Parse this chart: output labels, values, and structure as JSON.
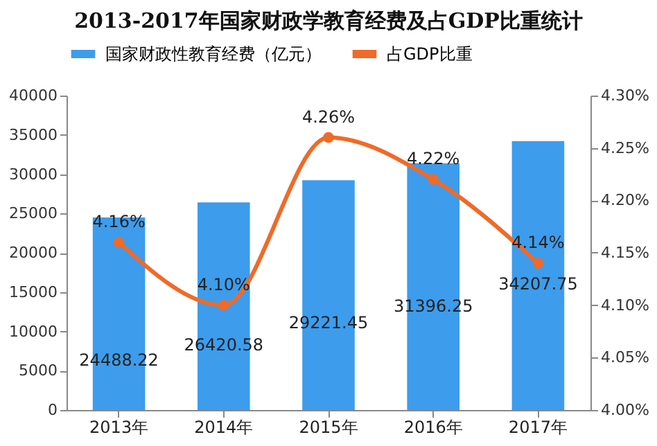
{
  "chart_data": {
    "type": "bar",
    "title": "2013-2017年国家财政学教育经费及占GDP比重统计",
    "categories": [
      "2013年",
      "2014年",
      "2015年",
      "2016年",
      "2017年"
    ],
    "series": [
      {
        "name": "国家财政性教育经费（亿元）",
        "type": "bar",
        "color": "#3d9cec",
        "values": [
          24488.22,
          26420.58,
          29221.45,
          31396.25,
          34207.75
        ],
        "value_labels": [
          "24488.22",
          "26420.58",
          "29221.45",
          "31396.25",
          "34207.75"
        ]
      },
      {
        "name": "占GDP比重",
        "type": "line",
        "axis": "y2",
        "color": "#f06a28",
        "values": [
          4.16,
          4.1,
          4.26,
          4.22,
          4.14
        ],
        "value_labels": [
          "4.16%",
          "4.10%",
          "4.26%",
          "4.22%",
          "4.14%"
        ]
      }
    ],
    "ylim": [
      0,
      40000
    ],
    "yticks": [
      0,
      5000,
      10000,
      15000,
      20000,
      25000,
      30000,
      35000,
      40000
    ],
    "y2lim": [
      4.0,
      4.3
    ],
    "y2ticks": [
      {
        "value": 4.0,
        "label": "4.00%"
      },
      {
        "value": 4.05,
        "label": "4.05%"
      },
      {
        "value": 4.1,
        "label": "4.10%"
      },
      {
        "value": 4.15,
        "label": "4.15%"
      },
      {
        "value": 4.2,
        "label": "4.20%"
      },
      {
        "value": 4.25,
        "label": "4.25%"
      },
      {
        "value": 4.3,
        "label": "4.30%"
      }
    ],
    "legend": "top",
    "marker": "circle",
    "grid": false
  }
}
